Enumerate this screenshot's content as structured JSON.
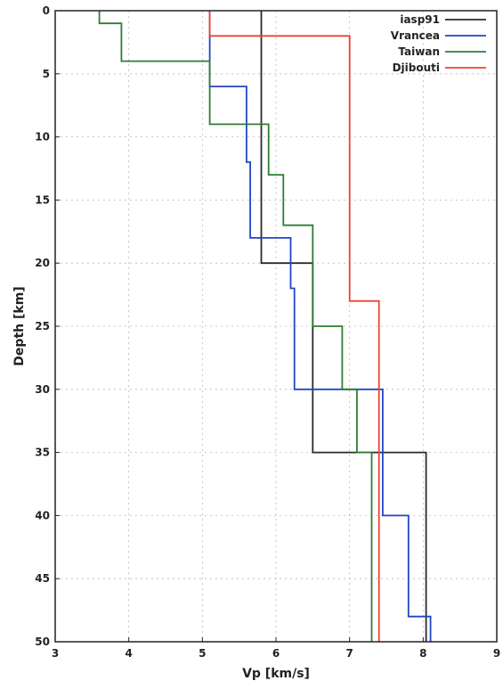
{
  "chart_data": {
    "type": "line",
    "title": "",
    "xlabel": "Vp [km/s]",
    "ylabel": "Depth [km]",
    "xlim": [
      3,
      9
    ],
    "ylim": [
      0,
      50
    ],
    "y_inverted": true,
    "x_ticks": [
      3,
      4,
      5,
      6,
      7,
      8,
      9
    ],
    "y_ticks": [
      0,
      5,
      10,
      15,
      20,
      25,
      30,
      35,
      40,
      45,
      50
    ],
    "grid": true,
    "legend_position": "top-right",
    "step_profiles": true,
    "series": [
      {
        "name": "iasp91",
        "color": "#2b2b2b",
        "layers": [
          {
            "top": 0,
            "bottom": 20,
            "vp": 5.8
          },
          {
            "top": 20,
            "bottom": 35,
            "vp": 6.5
          },
          {
            "top": 35,
            "bottom": 50,
            "vp": 8.04
          }
        ]
      },
      {
        "name": "Vrancea",
        "color": "#2046c8",
        "layers": [
          {
            "top": 0,
            "bottom": 6,
            "vp": 5.1
          },
          {
            "top": 6,
            "bottom": 12,
            "vp": 5.6
          },
          {
            "top": 12,
            "bottom": 18,
            "vp": 5.65
          },
          {
            "top": 18,
            "bottom": 22,
            "vp": 6.2
          },
          {
            "top": 22,
            "bottom": 30,
            "vp": 6.25
          },
          {
            "top": 30,
            "bottom": 40,
            "vp": 7.45
          },
          {
            "top": 40,
            "bottom": 48,
            "vp": 7.8
          },
          {
            "top": 48,
            "bottom": 50,
            "vp": 8.1
          }
        ]
      },
      {
        "name": "Taiwan",
        "color": "#2e7d32",
        "layers": [
          {
            "top": 0,
            "bottom": 1,
            "vp": 3.6
          },
          {
            "top": 1,
            "bottom": 4,
            "vp": 3.9
          },
          {
            "top": 4,
            "bottom": 9,
            "vp": 5.1
          },
          {
            "top": 9,
            "bottom": 13,
            "vp": 5.9
          },
          {
            "top": 13,
            "bottom": 17,
            "vp": 6.1
          },
          {
            "top": 17,
            "bottom": 25,
            "vp": 6.5
          },
          {
            "top": 25,
            "bottom": 30,
            "vp": 6.9
          },
          {
            "top": 30,
            "bottom": 35,
            "vp": 7.1
          },
          {
            "top": 35,
            "bottom": 50,
            "vp": 7.3
          }
        ]
      },
      {
        "name": "Djibouti",
        "color": "#f04030",
        "layers": [
          {
            "top": 0,
            "bottom": 2,
            "vp": 5.1
          },
          {
            "top": 2,
            "bottom": 23,
            "vp": 7.0
          },
          {
            "top": 23,
            "bottom": 50,
            "vp": 7.4
          }
        ]
      }
    ]
  }
}
